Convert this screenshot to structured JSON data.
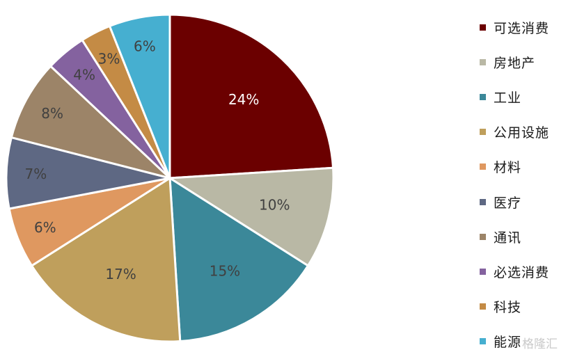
{
  "chart_data": {
    "type": "pie",
    "title": "",
    "start_angle_deg": 0,
    "direction": "clockwise",
    "slices": [
      {
        "label": "可选消费",
        "value": 24,
        "display": "24%",
        "color": "#6b0000",
        "label_color": "#ffffff"
      },
      {
        "label": "房地产",
        "value": 10,
        "display": "10%",
        "color": "#b9b8a5",
        "label_color": "#404040"
      },
      {
        "label": "工业",
        "value": 15,
        "display": "15%",
        "color": "#3b8899",
        "label_color": "#404040"
      },
      {
        "label": "公用设施",
        "value": 17,
        "display": "17%",
        "color": "#bf9f5c",
        "label_color": "#404040"
      },
      {
        "label": "材料",
        "value": 6,
        "display": "6%",
        "color": "#df9860",
        "label_color": "#404040"
      },
      {
        "label": "医疗",
        "value": 7,
        "display": "7%",
        "color": "#5e6883",
        "label_color": "#404040"
      },
      {
        "label": "通讯",
        "value": 8,
        "display": "8%",
        "color": "#9c8468",
        "label_color": "#404040"
      },
      {
        "label": "必选消费",
        "value": 4,
        "display": "4%",
        "color": "#84629f",
        "label_color": "#404040"
      },
      {
        "label": "科技",
        "value": 3,
        "display": "3%",
        "color": "#c48b45",
        "label_color": "#404040"
      },
      {
        "label": "能源",
        "value": 6,
        "display": "6%",
        "color": "#46afd0",
        "label_color": "#404040"
      }
    ],
    "legend_position": "right"
  },
  "watermark": "格隆汇"
}
